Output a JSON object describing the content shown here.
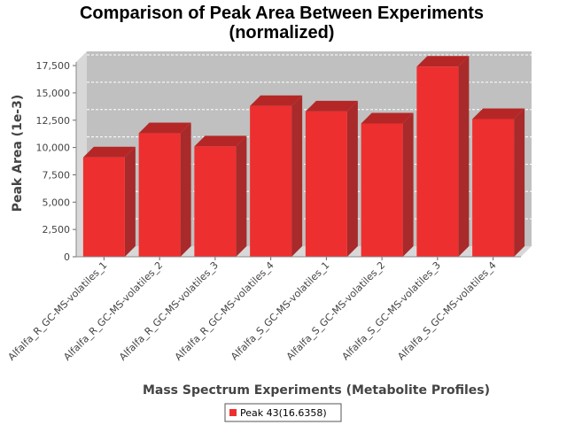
{
  "chart_data": {
    "type": "bar",
    "title": [
      "Comparison of Peak Area Between Experiments",
      "(normalized)"
    ],
    "xlabel": "Mass Spectrum Experiments (Metabolite Profiles)",
    "ylabel": "Peak Area (1e-3)",
    "categories": [
      "Alfalfa_R_GC-MS-volatiles_1",
      "Alfalfa_R_GC-MS-volatiles_2",
      "Alfalfa_R_GC-MS-volatiles_3",
      "Alfalfa_R_GC-MS-volatiles_4",
      "Alfalfa_S_GC-MS-volatiles_1",
      "Alfalfa_S_GC-MS-volatiles_2",
      "Alfalfa_S_GC-MS-volatiles_3",
      "Alfalfa_S_GC-MS-volatiles_4"
    ],
    "series": [
      {
        "name": "Peak 43(16.6358)",
        "values": [
          9100,
          11300,
          10100,
          13800,
          13300,
          12200,
          17400,
          12600
        ]
      }
    ],
    "ylim": [
      0,
      18000
    ],
    "yticks": [
      0,
      2500,
      5000,
      7500,
      10000,
      12500,
      15000,
      17500
    ],
    "ytick_labels": [
      "0",
      "2,500",
      "5,000",
      "7,500",
      "10,000",
      "12,500",
      "15,000",
      "17,500"
    ],
    "grid": true,
    "legend_position": "bottom-center",
    "colors": {
      "bar_front": "#ee2f2f",
      "bar_side": "#a82a2a",
      "bar_top": "#b52727",
      "plot_back": "#c0c0c0",
      "plot_side": "#d8d8d8",
      "grid": "#ffffff"
    }
  }
}
